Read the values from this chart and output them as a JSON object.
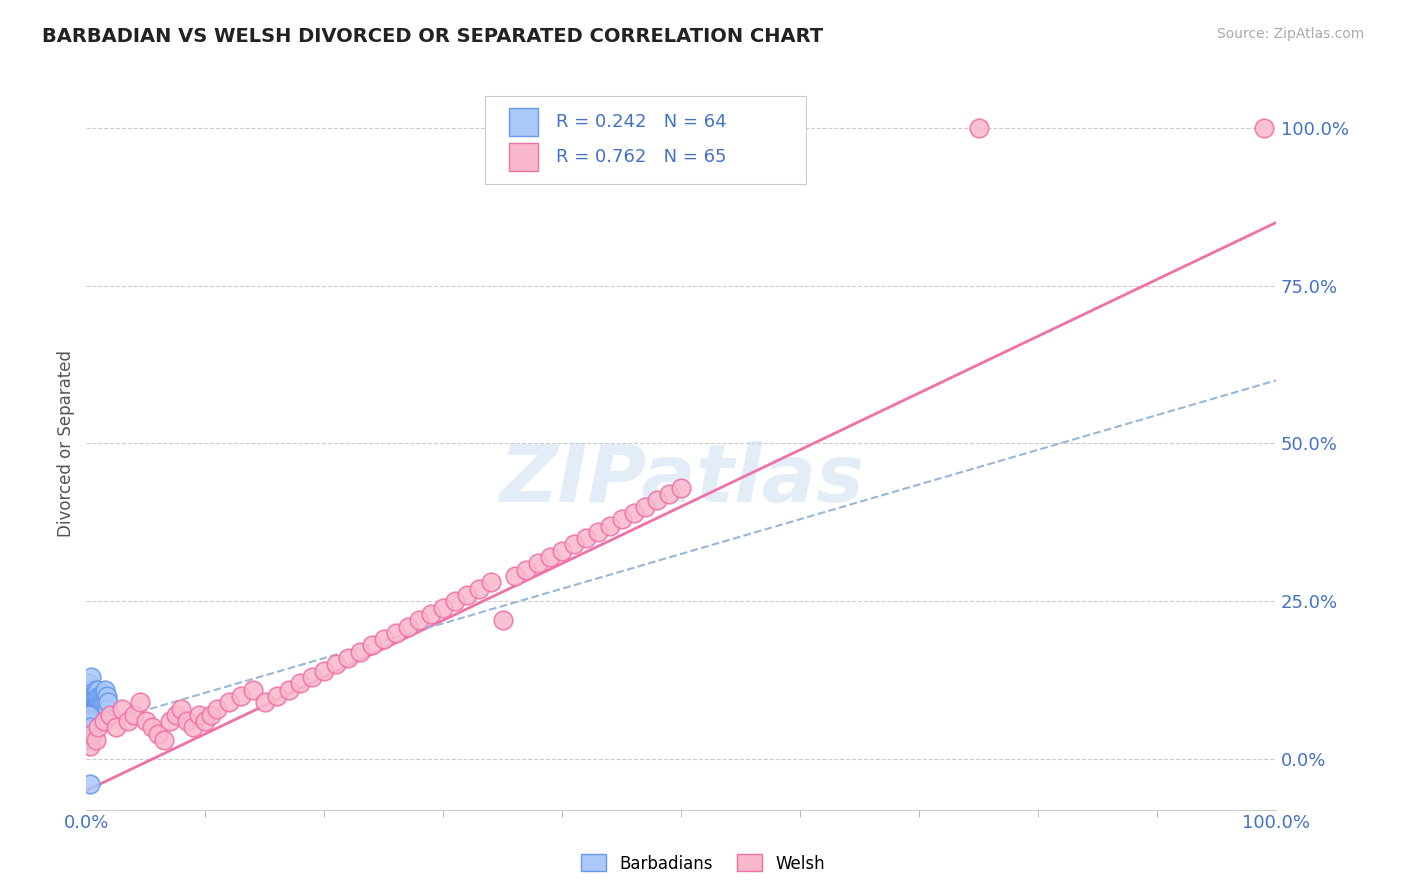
{
  "title": "BARBADIAN VS WELSH DIVORCED OR SEPARATED CORRELATION CHART",
  "source": "Source: ZipAtlas.com",
  "ylabel": "Divorced or Separated",
  "ytick_labels": [
    "0.0%",
    "25.0%",
    "50.0%",
    "75.0%",
    "100.0%"
  ],
  "ytick_values": [
    0,
    25,
    50,
    75,
    100
  ],
  "xlim": [
    0,
    100
  ],
  "ylim": [
    -8,
    108
  ],
  "barbadian_color": "#aac8f8",
  "barbadian_edge": "#6699ee",
  "welsh_color": "#f8b8cc",
  "welsh_edge": "#f070a8",
  "trend_barbadian_color": "#99b8d8",
  "trend_welsh_color": "#f070a8",
  "R_barbadian": 0.242,
  "N_barbadian": 64,
  "R_welsh": 0.762,
  "N_welsh": 65,
  "watermark": "ZIPatlas",
  "barbadian_x": [
    0.08,
    0.1,
    0.12,
    0.15,
    0.18,
    0.2,
    0.22,
    0.25,
    0.28,
    0.3,
    0.32,
    0.35,
    0.38,
    0.4,
    0.42,
    0.45,
    0.48,
    0.5,
    0.52,
    0.55,
    0.58,
    0.6,
    0.62,
    0.65,
    0.68,
    0.7,
    0.72,
    0.75,
    0.78,
    0.8,
    0.82,
    0.85,
    0.88,
    0.9,
    0.92,
    0.95,
    0.98,
    1.0,
    1.05,
    1.1,
    1.15,
    1.2,
    1.25,
    1.3,
    1.35,
    1.4,
    1.45,
    1.5,
    1.55,
    1.6,
    1.65,
    1.7,
    1.75,
    1.8,
    0.05,
    0.07,
    0.09,
    0.11,
    0.14,
    0.17,
    0.19,
    0.23,
    0.27,
    0.33
  ],
  "barbadian_y": [
    5,
    8,
    6,
    7,
    9,
    10,
    8,
    12,
    7,
    6,
    9,
    11,
    8,
    13,
    7,
    8,
    6,
    10,
    9,
    8,
    7,
    9,
    10,
    8,
    7,
    9,
    8,
    10,
    9,
    11,
    8,
    7,
    9,
    8,
    10,
    9,
    8,
    11,
    9,
    10,
    8,
    9,
    10,
    8,
    9,
    10,
    8,
    9,
    10,
    11,
    9,
    10,
    8,
    9,
    3,
    4,
    5,
    6,
    4,
    5,
    6,
    7,
    5,
    -4
  ],
  "welsh_x": [
    0.3,
    0.5,
    0.8,
    1.0,
    1.5,
    2.0,
    2.5,
    3.0,
    3.5,
    4.0,
    4.5,
    5.0,
    5.5,
    6.0,
    6.5,
    7.0,
    7.5,
    8.0,
    8.5,
    9.0,
    9.5,
    10.0,
    10.5,
    11.0,
    12.0,
    13.0,
    14.0,
    15.0,
    16.0,
    17.0,
    18.0,
    19.0,
    20.0,
    21.0,
    22.0,
    23.0,
    24.0,
    25.0,
    26.0,
    27.0,
    28.0,
    29.0,
    30.0,
    31.0,
    32.0,
    33.0,
    34.0,
    35.0,
    36.0,
    37.0,
    38.0,
    39.0,
    40.0,
    41.0,
    42.0,
    43.0,
    44.0,
    45.0,
    46.0,
    47.0,
    48.0,
    49.0,
    50.0,
    75.0,
    99.0
  ],
  "welsh_y": [
    2,
    4,
    3,
    5,
    6,
    7,
    5,
    8,
    6,
    7,
    9,
    6,
    5,
    4,
    3,
    6,
    7,
    8,
    6,
    5,
    7,
    6,
    7,
    8,
    9,
    10,
    11,
    9,
    10,
    11,
    12,
    13,
    14,
    15,
    16,
    17,
    18,
    19,
    20,
    21,
    22,
    23,
    24,
    25,
    26,
    27,
    28,
    22,
    29,
    30,
    31,
    32,
    33,
    34,
    35,
    36,
    37,
    38,
    39,
    40,
    41,
    42,
    43,
    100,
    100
  ],
  "welsh_trend_x0": 0,
  "welsh_trend_y0": -5,
  "welsh_trend_x1": 100,
  "welsh_trend_y1": 85,
  "barbadian_trend_x0": 0,
  "barbadian_trend_y0": 5,
  "barbadian_trend_x1": 100,
  "barbadian_trend_y1": 60
}
